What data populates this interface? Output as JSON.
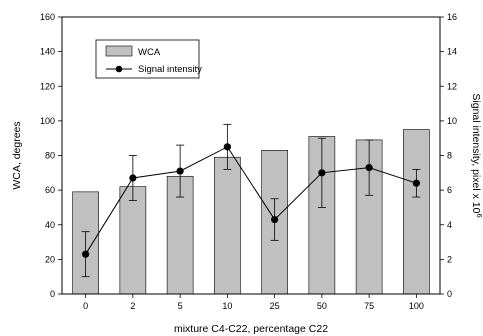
{
  "chart_data": {
    "type": "bar",
    "categories": [
      "0",
      "2",
      "5",
      "10",
      "25",
      "50",
      "75",
      "100"
    ],
    "xlabel": "mixture C4-C22, percentage C22",
    "ylabel": "WCA, degrees",
    "y2label": "Signal intensity, pixel x 10",
    "y2label_superscript": "6",
    "ylim": [
      0,
      160
    ],
    "y2lim": [
      0,
      16
    ],
    "yticks": [
      "0",
      "20",
      "40",
      "60",
      "80",
      "100",
      "120",
      "140",
      "160"
    ],
    "y2ticks": [
      "0",
      "2",
      "4",
      "6",
      "8",
      "10",
      "12",
      "14",
      "16"
    ],
    "legend_position": "top-left",
    "grid": false,
    "series": [
      {
        "name": "WCA",
        "type": "bar",
        "axis": "left",
        "color": "#c0c0c0",
        "values": [
          59,
          62,
          68,
          79,
          83,
          91,
          89,
          95
        ]
      },
      {
        "name": "Signal intensity",
        "type": "line",
        "axis": "right",
        "color": "#000000",
        "marker": "circle",
        "values": [
          2.3,
          6.7,
          7.1,
          8.5,
          4.3,
          7.0,
          7.3,
          6.4
        ],
        "error": [
          1.3,
          1.3,
          1.5,
          1.3,
          1.2,
          2.0,
          1.6,
          0.8
        ]
      }
    ]
  }
}
